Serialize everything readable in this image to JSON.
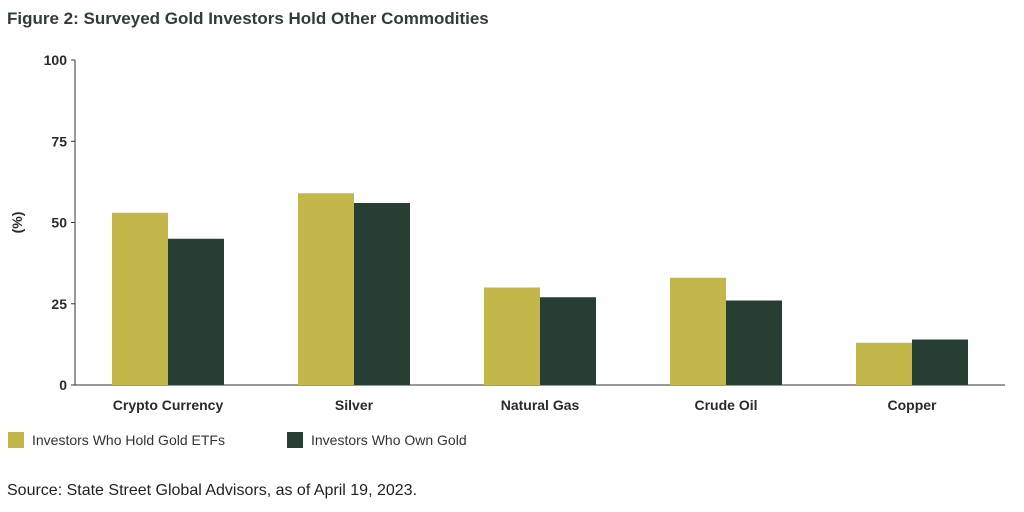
{
  "title": "Figure 2: Surveyed Gold Investors Hold Other Commodities",
  "source": "Source: State Street Global Advisors, as of April 19, 2023.",
  "colors": {
    "etf": "#c4b74a",
    "gold": "#273f33",
    "axis": "#333333"
  },
  "chart_data": {
    "type": "bar",
    "title": "Figure 2: Surveyed Gold Investors Hold Other Commodities",
    "xlabel": "",
    "ylabel": "(%)",
    "ylim": [
      0,
      100
    ],
    "yticks": [
      0,
      25,
      50,
      75,
      100
    ],
    "categories": [
      "Crypto Currency",
      "Silver",
      "Natural Gas",
      "Crude Oil",
      "Copper"
    ],
    "series": [
      {
        "name": "Investors Who Hold Gold ETFs",
        "values": [
          53,
          59,
          30,
          33,
          13
        ]
      },
      {
        "name": "Investors Who Own Gold",
        "values": [
          45,
          56,
          27,
          26,
          14
        ]
      }
    ],
    "grid": false,
    "legend": "bottom-left"
  }
}
